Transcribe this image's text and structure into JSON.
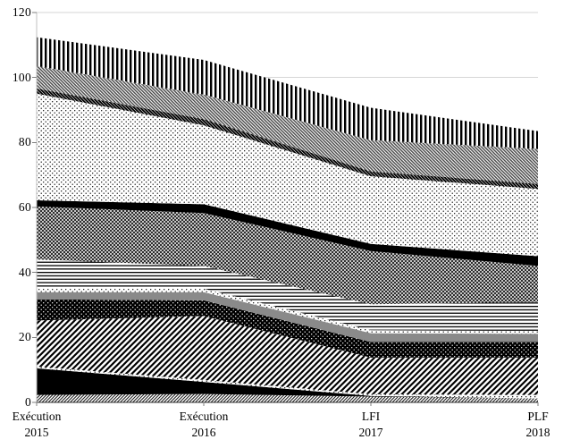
{
  "figure": {
    "background": "#ffffff",
    "grid_color": "#d6d6d6",
    "y_axis_line_color": "#c0c0c0",
    "x_axis_line_color": "#333333",
    "tick_mark_color": "#7f7f7f",
    "text_color": "#000000"
  },
  "chart_data": {
    "type": "area",
    "stacked": true,
    "title": "",
    "xlabel": "",
    "ylabel": "",
    "ylim": [
      0,
      120
    ],
    "yticks": [
      0,
      20,
      40,
      60,
      80,
      100,
      120
    ],
    "grid": true,
    "legend": "none",
    "series_order": "bottom-to-top",
    "categories": [
      [
        "Exécution",
        "2015"
      ],
      [
        "Exécution",
        "2016"
      ],
      [
        "LFI",
        "2017"
      ],
      [
        "PLF",
        "2018"
      ]
    ],
    "stack_totals": [
      112.4,
      105.4,
      90.7,
      83.5
    ],
    "series": [
      {
        "name": "fine-diagonal-hatch-bottom",
        "fill": "p-finehatch",
        "values": [
          2.3,
          2.6,
          1.8,
          1.2
        ]
      },
      {
        "name": "solid-black-lower",
        "fill": "p-black",
        "values": [
          8.2,
          3.7,
          0.2,
          0.0
        ]
      },
      {
        "name": "light-dotted-thin-lower",
        "fill": "p-dots-light",
        "values": [
          0.5,
          0.6,
          0.5,
          1.1
        ]
      },
      {
        "name": "wide-diagonal-stripes",
        "fill": "p-diag-wide",
        "values": [
          14.2,
          19.7,
          11.3,
          11.5
        ]
      },
      {
        "name": "black-with-white-dots",
        "fill": "p-black-dots",
        "values": [
          6.5,
          4.8,
          4.8,
          4.8
        ]
      },
      {
        "name": "solid-gray-band",
        "fill": "p-gray",
        "values": [
          2.2,
          2.5,
          2.7,
          2.5
        ]
      },
      {
        "name": "light-dotted-thin-mid",
        "fill": "p-dots-light",
        "values": [
          1.1,
          1.1,
          0.9,
          0.9
        ]
      },
      {
        "name": "horizontal-stripes",
        "fill": "p-hlines",
        "values": [
          9.0,
          7.0,
          8.0,
          8.9
        ]
      },
      {
        "name": "dark-crosshatch",
        "fill": "p-cross-dark",
        "values": [
          16.3,
          16.3,
          16.4,
          11.1
        ]
      },
      {
        "name": "solid-black-upper",
        "fill": "p-black",
        "values": [
          1.9,
          2.7,
          2.2,
          3.0
        ]
      },
      {
        "name": "light-dotted-large",
        "fill": "p-dots-light",
        "values": [
          32.8,
          24.3,
          20.8,
          20.7
        ]
      },
      {
        "name": "dark-diagonal-thin",
        "fill": "p-diag-dark",
        "values": [
          1.6,
          1.9,
          1.5,
          1.5
        ]
      },
      {
        "name": "gray-backslash-diagonal",
        "fill": "p-diag-back",
        "values": [
          6.9,
          7.5,
          9.6,
          10.8
        ]
      },
      {
        "name": "vertical-stripes",
        "fill": "p-vstripes",
        "values": [
          8.9,
          10.7,
          10.0,
          5.5
        ]
      }
    ]
  }
}
